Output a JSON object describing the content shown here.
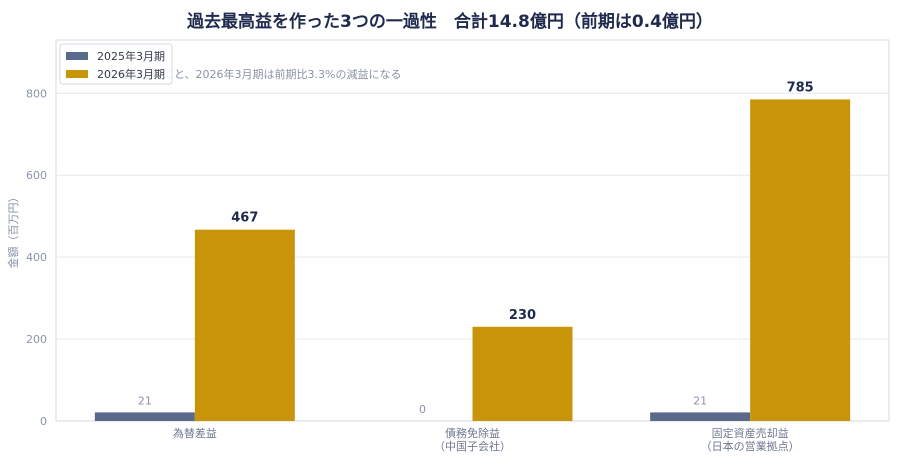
{
  "chart_data": {
    "type": "bar",
    "title": "過去最高益を作った3つの一過性　合計14.8億円（前期は0.4億円）",
    "subtitle": "3つを引っ抜くと、2026年3月期は前期比3.3%の減益になる",
    "ylabel": "金額（百万円）",
    "xlabel": "",
    "ylim": [
      0,
      930
    ],
    "yticks": [
      0,
      200,
      400,
      600,
      800
    ],
    "grid": true,
    "legend_position": "top-left",
    "categories": [
      [
        "為替差益"
      ],
      [
        "債務免除益",
        "（中国子会社）"
      ],
      [
        "固定資産売却益",
        "（日本の営業拠点）"
      ]
    ],
    "series": [
      {
        "name": "2025年3月期",
        "color": "#5b6a8a",
        "values": [
          21,
          0,
          21
        ]
      },
      {
        "name": "2026年3月期",
        "color": "#c8950a",
        "values": [
          467,
          230,
          785
        ]
      }
    ]
  }
}
